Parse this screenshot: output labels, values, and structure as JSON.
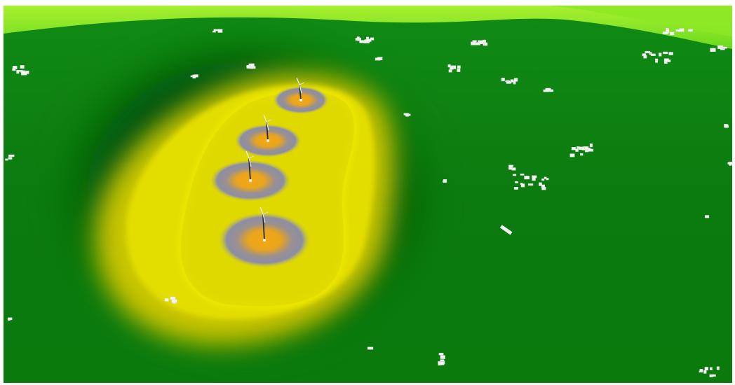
{
  "scene": {
    "kind": "3d-terrain-noise-map",
    "terrain_color": "#0c7a10",
    "horizon_color": "#7fe31c",
    "legend_colors": {
      "outer_field": "#f3ee00",
      "mid_band": "#8f8f9f",
      "core": "#f2a516",
      "shadow_ring": "#034d08"
    },
    "turbine_count": 4,
    "building_icon": "building-block-icon",
    "turbine_icon": "wind-turbine-icon"
  }
}
